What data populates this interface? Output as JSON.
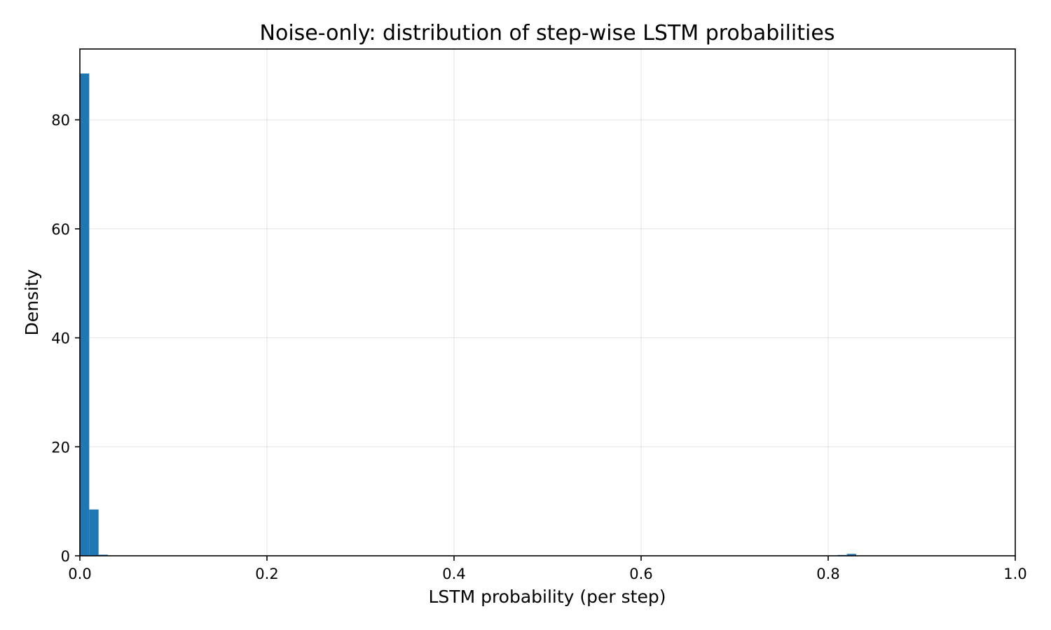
{
  "chart_data": {
    "type": "bar",
    "title": "Noise-only: distribution of step-wise LSTM probabilities",
    "xlabel": "LSTM probability (per step)",
    "ylabel": "Density",
    "xlim": [
      0.0,
      1.0
    ],
    "ylim": [
      0,
      93
    ],
    "grid": true,
    "color": "#1f77b4",
    "x_ticks": [
      0.0,
      0.2,
      0.4,
      0.6,
      0.8,
      1.0
    ],
    "x_tick_labels": [
      "0.0",
      "0.2",
      "0.4",
      "0.6",
      "0.8",
      "1.0"
    ],
    "y_ticks": [
      0,
      20,
      40,
      60,
      80
    ],
    "y_tick_labels": [
      "0",
      "20",
      "40",
      "60",
      "80"
    ],
    "bin_width": 0.01,
    "bins": [
      {
        "x0": 0.0,
        "x1": 0.01,
        "value": 88.5
      },
      {
        "x0": 0.01,
        "x1": 0.02,
        "value": 8.5
      },
      {
        "x0": 0.02,
        "x1": 0.03,
        "value": 0.2
      },
      {
        "x0": 0.81,
        "x1": 0.82,
        "value": 0.15
      },
      {
        "x0": 0.82,
        "x1": 0.83,
        "value": 0.35
      }
    ]
  }
}
